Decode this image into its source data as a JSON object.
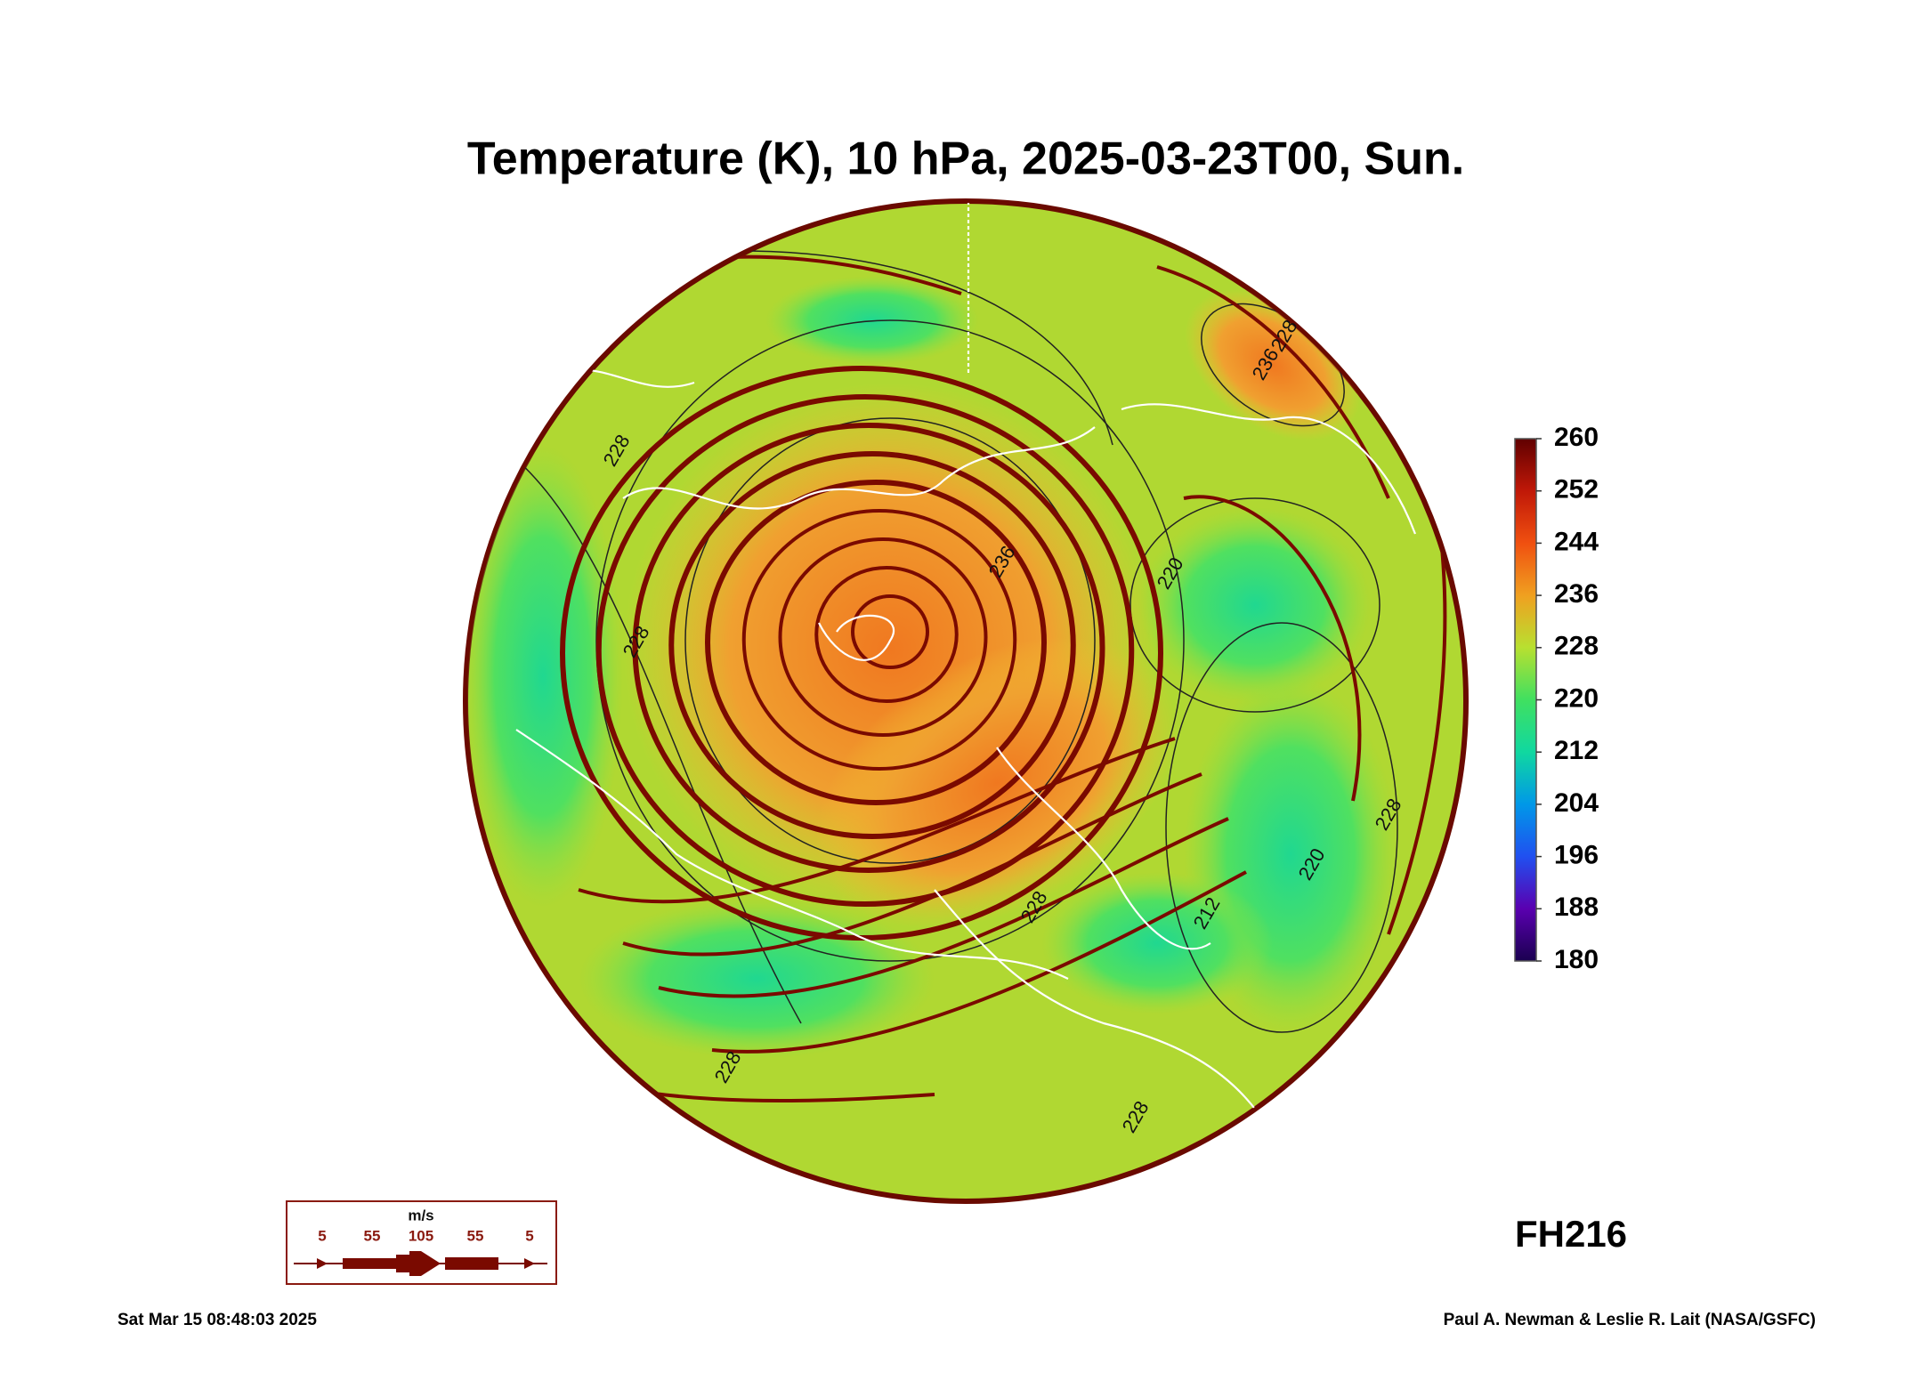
{
  "title": "Temperature (K), 10 hPa, 2025-03-23T00, Sun.",
  "colorbar": {
    "range": [
      180,
      260
    ],
    "ticks": [
      180,
      188,
      196,
      204,
      212,
      220,
      228,
      236,
      244,
      252,
      260
    ],
    "colors": [
      "#1a0050",
      "#5a00b0",
      "#2050f0",
      "#0098e8",
      "#10d8a0",
      "#40e060",
      "#b8e030",
      "#f0a020",
      "#f05010",
      "#c01808",
      "#600000"
    ]
  },
  "contour_labels": [
    "236",
    "220",
    "228",
    "228",
    "236",
    "228",
    "220",
    "228",
    "212",
    "228",
    "228",
    "228"
  ],
  "wind_legend": {
    "unit": "m/s",
    "labels": [
      "5",
      "55",
      "105",
      "55",
      "5"
    ]
  },
  "forecast_hour": "FH216",
  "timestamp": "Sat Mar 15 08:48:03 2025",
  "credit": "Paul A. Newman & Leslie R. Lait (NASA/GSFC)"
}
